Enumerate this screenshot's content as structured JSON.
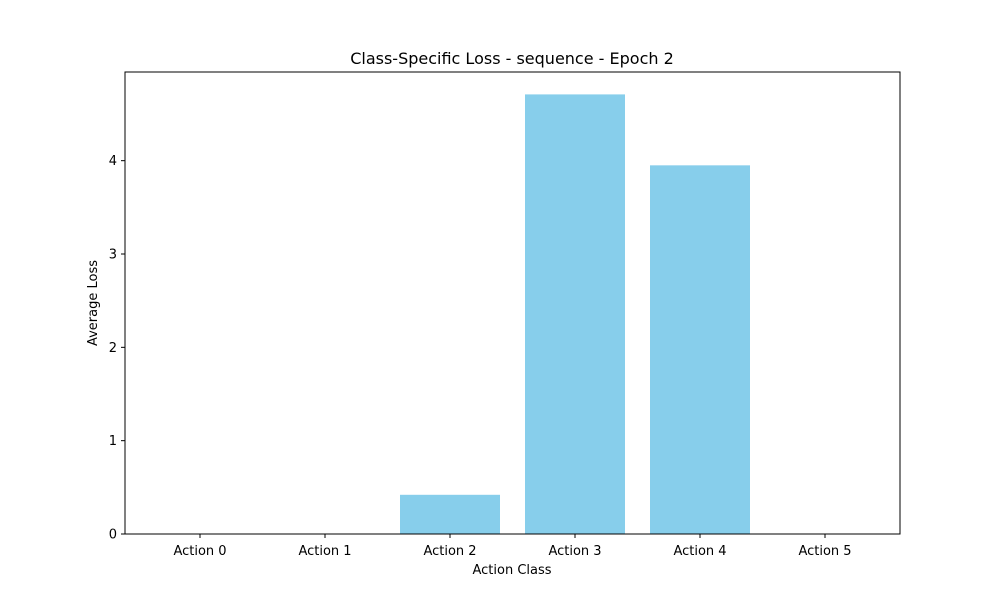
{
  "chart_data": {
    "type": "bar",
    "title": "Class-Specific Loss - sequence - Epoch 2",
    "xlabel": "Action Class",
    "ylabel": "Average Loss",
    "categories": [
      "Action 0",
      "Action 1",
      "Action 2",
      "Action 3",
      "Action 4",
      "Action 5"
    ],
    "values": [
      0,
      0,
      0.42,
      4.71,
      3.95,
      0
    ],
    "yticks": [
      0,
      1,
      2,
      3,
      4
    ],
    "ylim": [
      0,
      4.95
    ],
    "grid": false,
    "bar_color": "#87ceeb",
    "axis_color": "#000000"
  }
}
